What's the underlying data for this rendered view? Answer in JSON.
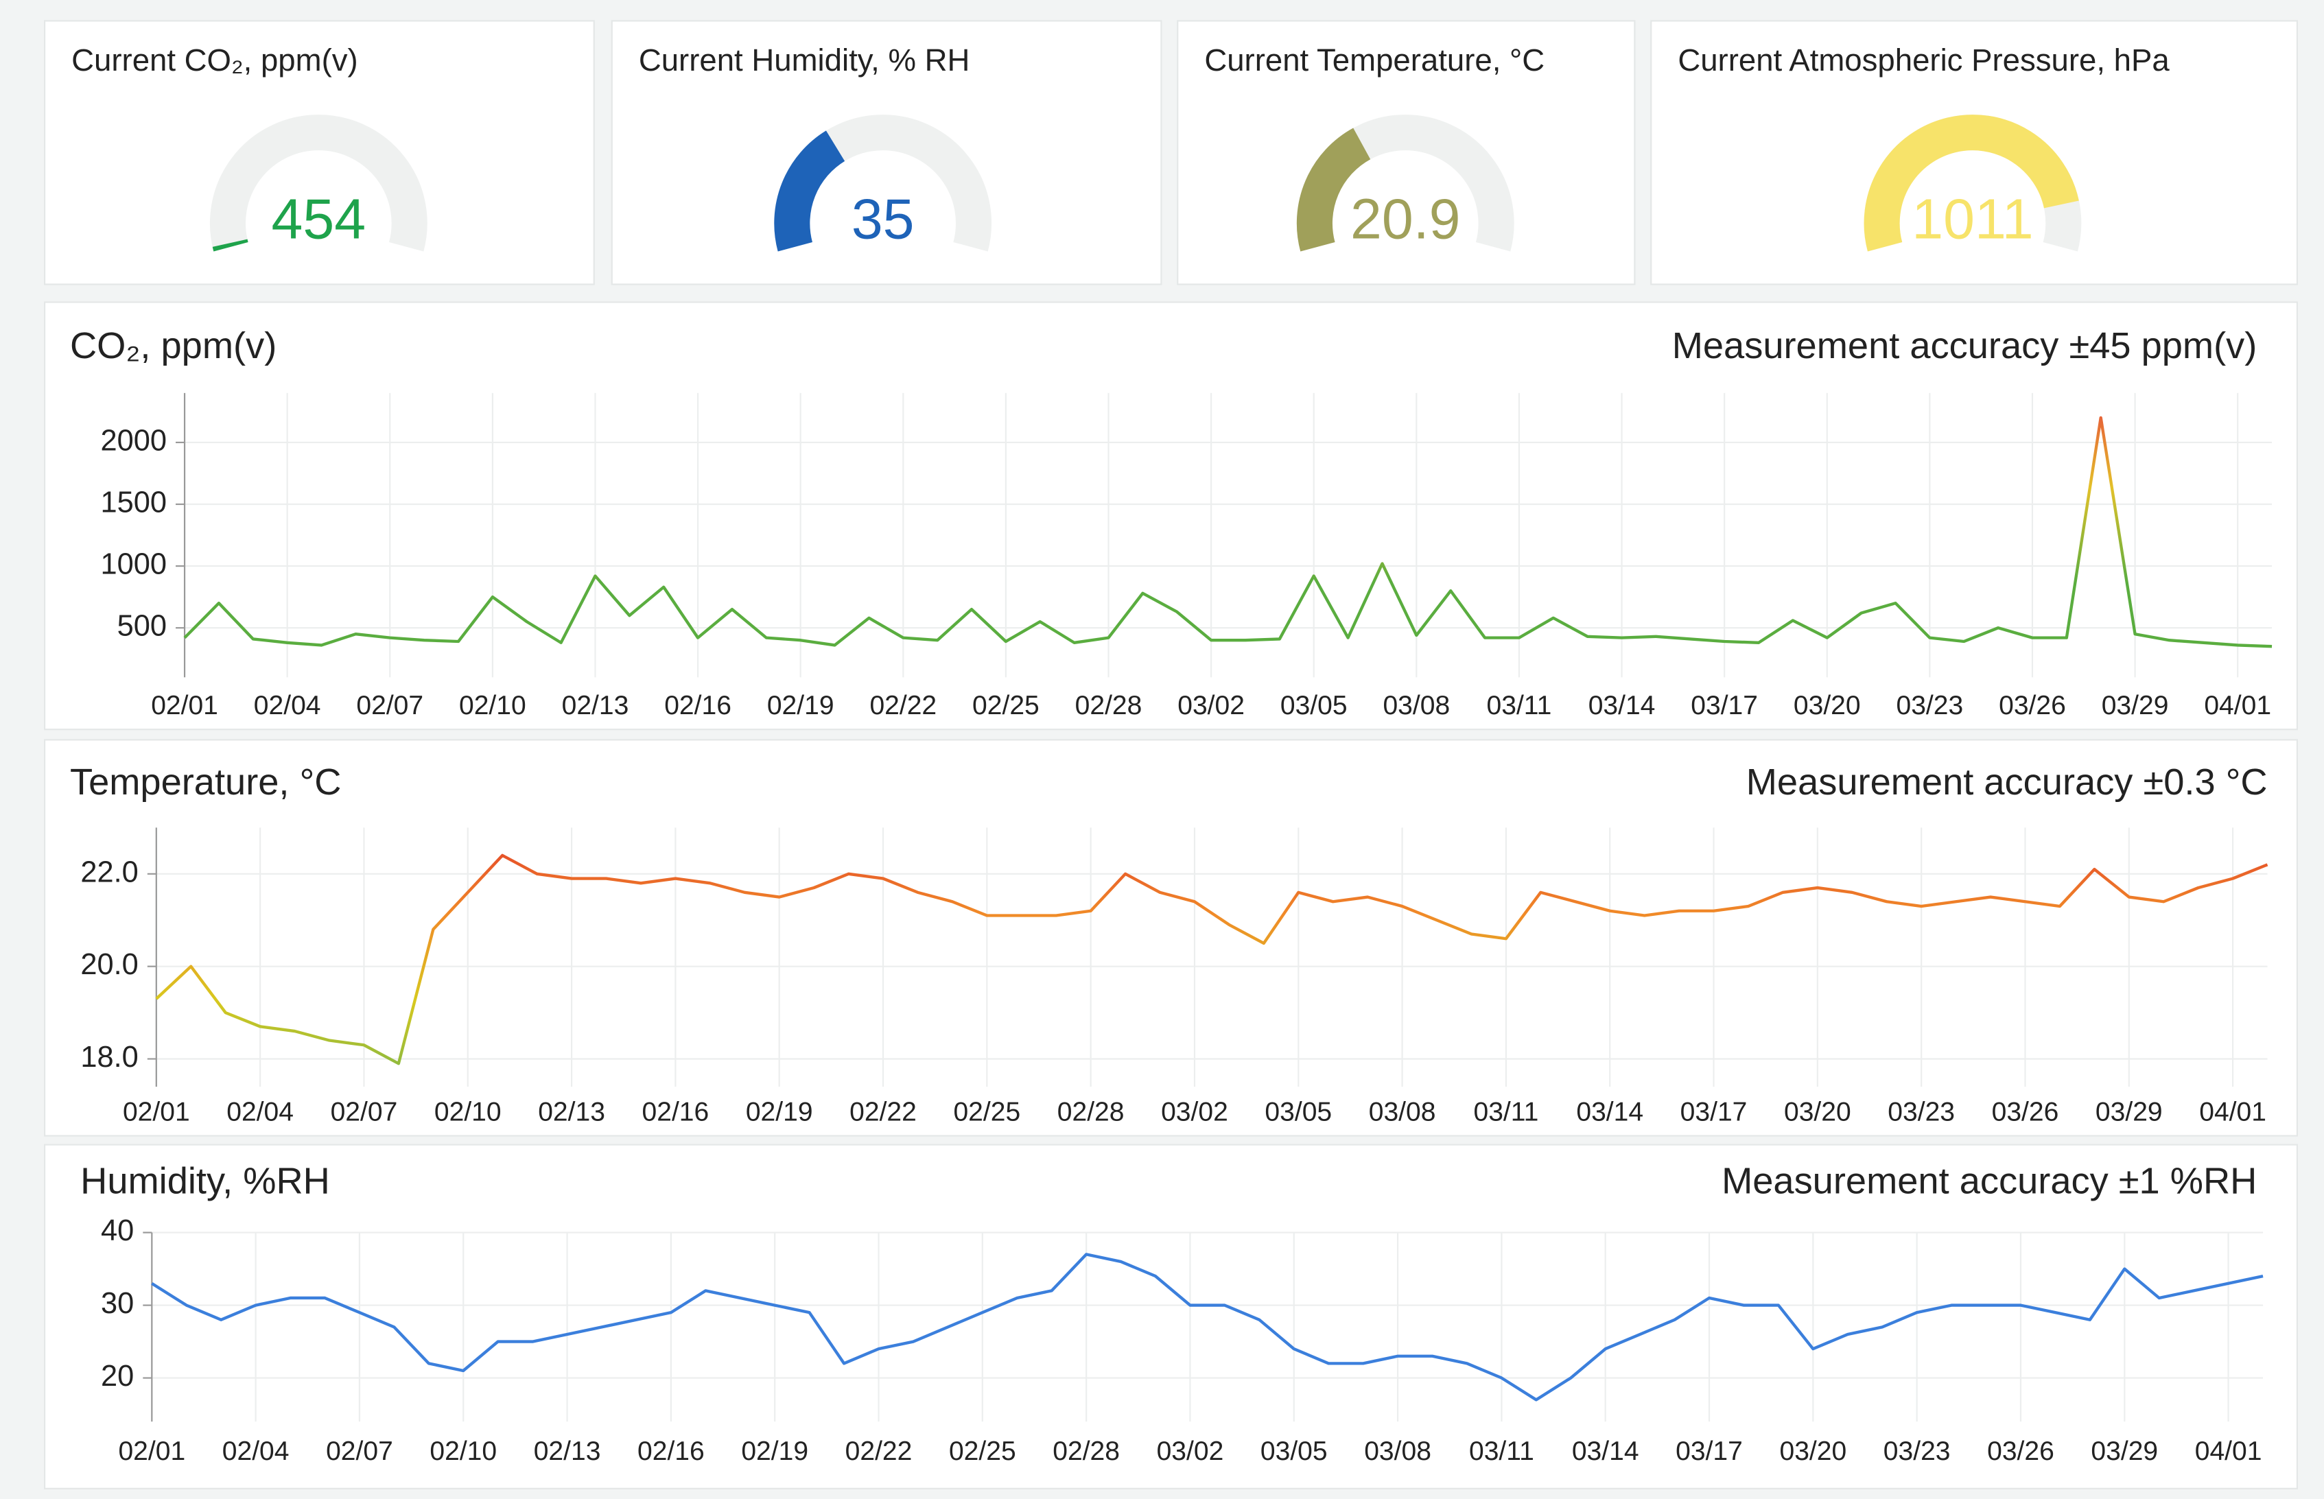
{
  "chart_data": [
    {
      "type": "gauge",
      "title": "Current CO₂, ppm(v)",
      "value": 454,
      "range": [
        400,
        5000
      ],
      "color": "#1ea34b"
    },
    {
      "type": "gauge",
      "title": "Current Humidity, % RH",
      "value": 35,
      "range": [
        0,
        100
      ],
      "color": "#1e63b8"
    },
    {
      "type": "gauge",
      "title": "Current Temperature, °C",
      "value": 20.9,
      "range": [
        10,
        40
      ],
      "color": "#a0a05a"
    },
    {
      "type": "gauge",
      "title": "Current Atmospheric Pressure, hPa",
      "value": 1011,
      "range": [
        950,
        1020
      ],
      "color": "#f7e36a"
    },
    {
      "type": "line",
      "title": "CO₂, ppm(v)",
      "annotation": "Measurement accuracy ±45 ppm(v)",
      "x": [
        "02/01",
        "02/02",
        "02/03",
        "02/04",
        "02/05",
        "02/06",
        "02/07",
        "02/08",
        "02/09",
        "02/10",
        "02/11",
        "02/12",
        "02/13",
        "02/14",
        "02/15",
        "02/16",
        "02/17",
        "02/18",
        "02/19",
        "02/20",
        "02/21",
        "02/22",
        "02/23",
        "02/24",
        "02/25",
        "02/26",
        "02/27",
        "02/28",
        "02/29",
        "03/01",
        "03/02",
        "03/03",
        "03/04",
        "03/05",
        "03/06",
        "03/07",
        "03/08",
        "03/09",
        "03/10",
        "03/11",
        "03/12",
        "03/13",
        "03/14",
        "03/15",
        "03/16",
        "03/17",
        "03/18",
        "03/19",
        "03/20",
        "03/21",
        "03/22",
        "03/23",
        "03/24",
        "03/25",
        "03/26",
        "03/27",
        "03/28",
        "03/29",
        "03/30",
        "03/31",
        "04/01",
        "04/02"
      ],
      "values": [
        420,
        700,
        410,
        380,
        360,
        450,
        420,
        400,
        390,
        750,
        550,
        380,
        920,
        600,
        830,
        420,
        650,
        420,
        400,
        360,
        580,
        420,
        400,
        650,
        390,
        550,
        380,
        420,
        780,
        630,
        400,
        400,
        410,
        920,
        420,
        1020,
        440,
        800,
        420,
        420,
        580,
        430,
        420,
        430,
        410,
        390,
        380,
        560,
        420,
        620,
        700,
        420,
        390,
        500,
        420,
        420,
        2200,
        450,
        400,
        380,
        360,
        350
      ],
      "colors": [
        "#5aad3f",
        "#5aad3f",
        "#e3c12a",
        "#e8453c"
      ],
      "xlim": [
        "02/01",
        "04/02"
      ],
      "xticks": [
        "02/01",
        "02/04",
        "02/07",
        "02/10",
        "02/13",
        "02/16",
        "02/19",
        "02/22",
        "02/25",
        "02/28",
        "03/02",
        "03/05",
        "03/08",
        "03/11",
        "03/14",
        "03/17",
        "03/20",
        "03/23",
        "03/26",
        "03/29",
        "04/01"
      ],
      "ylim": [
        100,
        2400
      ],
      "yticks": [
        500,
        1000,
        1500,
        2000
      ],
      "grid": true
    },
    {
      "type": "line",
      "title": "Temperature, °C",
      "annotation": "Measurement accuracy ±0.3 °C",
      "x": [
        "02/01",
        "02/02",
        "02/03",
        "02/04",
        "02/05",
        "02/06",
        "02/07",
        "02/08",
        "02/09",
        "02/10",
        "02/11",
        "02/12",
        "02/13",
        "02/14",
        "02/15",
        "02/16",
        "02/17",
        "02/18",
        "02/19",
        "02/20",
        "02/21",
        "02/22",
        "02/23",
        "02/24",
        "02/25",
        "02/26",
        "02/27",
        "02/28",
        "02/29",
        "03/01",
        "03/02",
        "03/03",
        "03/04",
        "03/05",
        "03/06",
        "03/07",
        "03/08",
        "03/09",
        "03/10",
        "03/11",
        "03/12",
        "03/13",
        "03/14",
        "03/15",
        "03/16",
        "03/17",
        "03/18",
        "03/19",
        "03/20",
        "03/21",
        "03/22",
        "03/23",
        "03/24",
        "03/25",
        "03/26",
        "03/27",
        "03/28",
        "03/29",
        "03/30",
        "03/31",
        "04/01",
        "04/02"
      ],
      "values": [
        19.3,
        20.0,
        19.0,
        18.7,
        18.6,
        18.4,
        18.3,
        17.9,
        20.8,
        21.6,
        22.4,
        22.0,
        21.9,
        21.9,
        21.8,
        21.9,
        21.8,
        21.6,
        21.5,
        21.7,
        22.0,
        21.9,
        21.6,
        21.4,
        21.1,
        21.1,
        21.1,
        21.2,
        22.0,
        21.6,
        21.4,
        20.9,
        20.5,
        21.6,
        21.4,
        21.5,
        21.3,
        21.0,
        20.7,
        20.6,
        21.6,
        21.4,
        21.2,
        21.1,
        21.2,
        21.2,
        21.3,
        21.6,
        21.7,
        21.6,
        21.4,
        21.3,
        21.4,
        21.5,
        21.4,
        21.3,
        22.1,
        21.5,
        21.4,
        21.7,
        21.9,
        22.2
      ],
      "colors": [
        "#7ab648",
        "#d8c81e",
        "#f08a28",
        "#e23a2a"
      ],
      "xlim": [
        "02/01",
        "04/02"
      ],
      "xticks": [
        "02/01",
        "02/04",
        "02/07",
        "02/10",
        "02/13",
        "02/16",
        "02/19",
        "02/22",
        "02/25",
        "02/28",
        "03/02",
        "03/05",
        "03/08",
        "03/11",
        "03/14",
        "03/17",
        "03/20",
        "03/23",
        "03/26",
        "03/29",
        "04/01"
      ],
      "ylim": [
        17.4,
        23.0
      ],
      "yticks": [
        {
          "value": 18,
          "label": "18.0"
        },
        {
          "value": 20,
          "label": "20.0"
        },
        {
          "value": 22,
          "label": "22.0"
        }
      ],
      "grid": true
    },
    {
      "type": "line",
      "title": "Humidity, %RH",
      "annotation": "Measurement accuracy ±1 %RH",
      "x": [
        "02/01",
        "02/02",
        "02/03",
        "02/04",
        "02/05",
        "02/06",
        "02/07",
        "02/08",
        "02/09",
        "02/10",
        "02/11",
        "02/12",
        "02/13",
        "02/14",
        "02/15",
        "02/16",
        "02/17",
        "02/18",
        "02/19",
        "02/20",
        "02/21",
        "02/22",
        "02/23",
        "02/24",
        "02/25",
        "02/26",
        "02/27",
        "02/28",
        "02/29",
        "03/01",
        "03/02",
        "03/03",
        "03/04",
        "03/05",
        "03/06",
        "03/07",
        "03/08",
        "03/09",
        "03/10",
        "03/11",
        "03/12",
        "03/13",
        "03/14",
        "03/15",
        "03/16",
        "03/17",
        "03/18",
        "03/19",
        "03/20",
        "03/21",
        "03/22",
        "03/23",
        "03/24",
        "03/25",
        "03/26",
        "03/27",
        "03/28",
        "03/29",
        "03/30",
        "03/31",
        "04/01",
        "04/02"
      ],
      "values": [
        33,
        30,
        28,
        30,
        31,
        31,
        29,
        27,
        22,
        21,
        25,
        25,
        26,
        27,
        28,
        29,
        32,
        31,
        30,
        29,
        22,
        24,
        25,
        27,
        29,
        31,
        32,
        37,
        36,
        34,
        30,
        30,
        28,
        24,
        22,
        22,
        23,
        23,
        22,
        20,
        17,
        20,
        24,
        26,
        28,
        31,
        30,
        30,
        24,
        26,
        27,
        29,
        30,
        30,
        30,
        29,
        28,
        35,
        31,
        32,
        33,
        34
      ],
      "color": "#3b7fdc",
      "xlim": [
        "02/01",
        "04/02"
      ],
      "xticks": [
        "02/01",
        "02/04",
        "02/07",
        "02/10",
        "02/13",
        "02/16",
        "02/19",
        "02/22",
        "02/25",
        "02/28",
        "03/02",
        "03/05",
        "03/08",
        "03/11",
        "03/14",
        "03/17",
        "03/20",
        "03/23",
        "03/26",
        "03/29",
        "04/01"
      ],
      "ylim": [
        14,
        40
      ],
      "yticks": [
        20,
        30,
        40
      ],
      "grid": true
    }
  ]
}
